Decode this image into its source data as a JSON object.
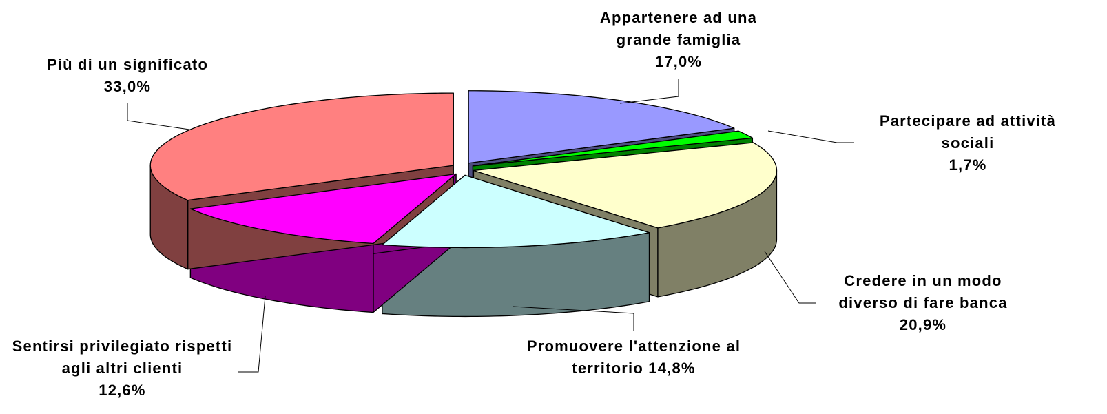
{
  "chart_data": {
    "type": "pie3d",
    "categories": [
      "Appartenere ad una grande famiglia",
      "Partecipare ad attività sociali",
      "Credere in un modo diverso di fare banca",
      "Promuovere l'attenzione al territorio",
      "Sentirsi privilegiato rispetti agli altri clienti",
      "Più di un significato"
    ],
    "values": [
      17.0,
      1.7,
      20.9,
      14.8,
      12.6,
      33.0
    ],
    "value_labels": [
      "17,0%",
      "1,7%",
      "20,9%",
      "14,8%",
      "12,6%",
      "33,0%"
    ],
    "colors": [
      "#9999ff",
      "#00ff00",
      "#ffffcc",
      "#ccffff",
      "#ff00ff",
      "#ff8080"
    ]
  }
}
